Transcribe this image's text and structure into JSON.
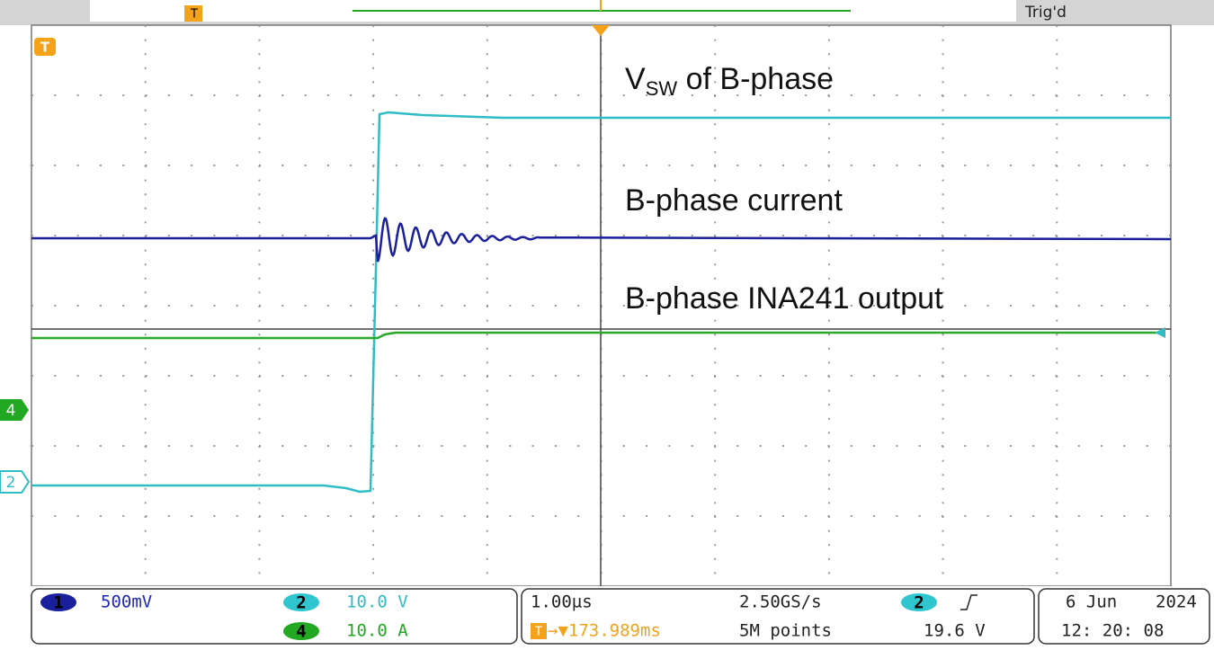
{
  "header": {
    "record_marker": "T",
    "status": "Trig'd"
  },
  "screen": {
    "trigger_marker": "T",
    "annotations": [
      {
        "main": "V",
        "sub": "SW",
        "rest": " of B-phase"
      },
      {
        "text": "B-phase current"
      },
      {
        "text": "B-phase INA241 output"
      }
    ],
    "channel_markers": [
      "4",
      "2"
    ]
  },
  "status_bar": {
    "channels": {
      "ch1": {
        "id": "1",
        "scale": "500mV"
      },
      "ch2": {
        "id": "2",
        "scale": "10.0 V"
      },
      "ch4": {
        "id": "4",
        "scale": "10.0 A"
      }
    },
    "timebase": {
      "scale": "1.00µs",
      "sample_rate": "2.50GS/s",
      "trigger_icon": "T",
      "position": "→▼173.989ms",
      "record_length": "5M points"
    },
    "trigger": {
      "source": "2",
      "level": "19.6 V"
    },
    "date": {
      "day_month": "6 Jun",
      "year": "2024",
      "time": "12: 20: 08"
    }
  }
}
